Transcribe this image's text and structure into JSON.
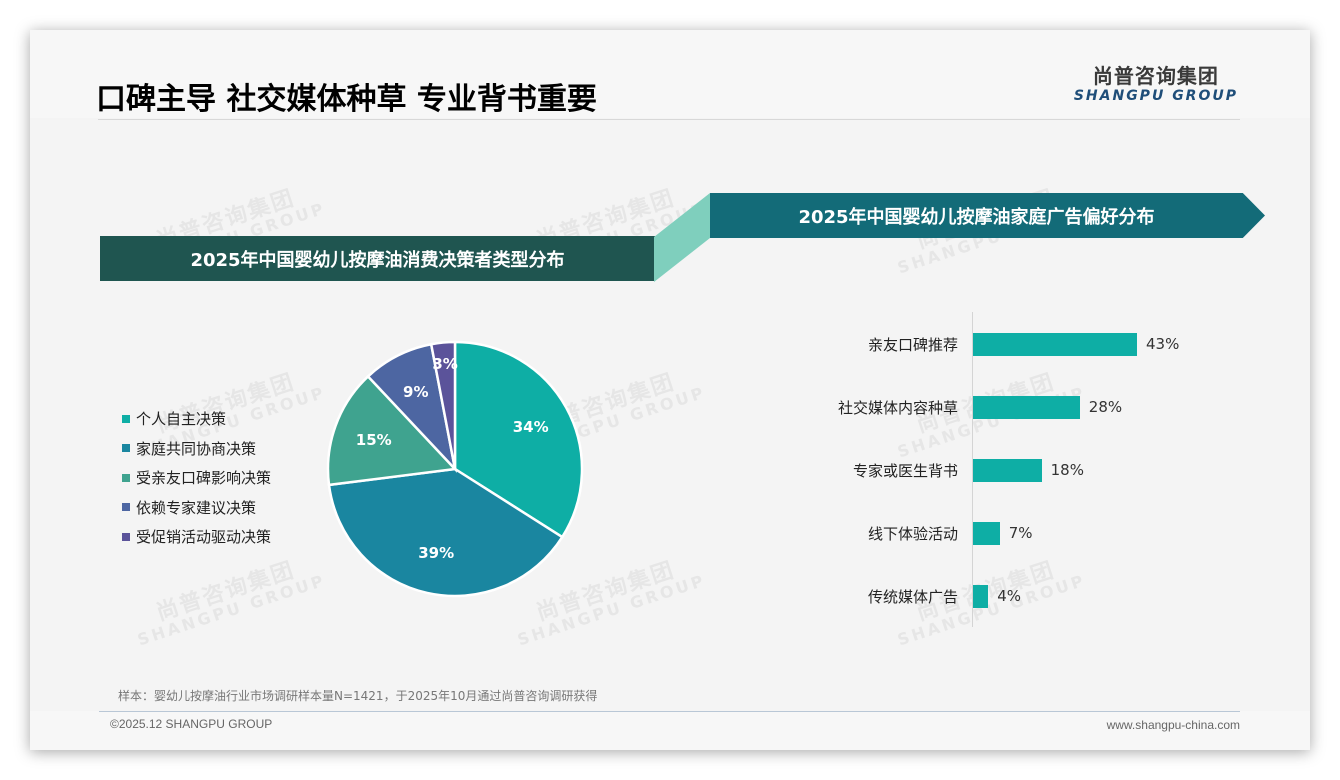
{
  "header": {
    "title": "口碑主导 社交媒体种草 专业背书重要",
    "logo_cn": "尚普咨询集团",
    "logo_en": "SHANGPU GROUP"
  },
  "watermark": {
    "cn": "尚普咨询集团",
    "en": "SHANGPU GROUP"
  },
  "colors": {
    "banner_left": "#1f5550",
    "banner_join": "#7fcfbd",
    "banner_right": "#136b78",
    "bar": "#0eaea5",
    "pie": [
      "#0eaea5",
      "#1a86a0",
      "#3fa38f",
      "#4d66a2",
      "#5b539a"
    ]
  },
  "left_panel": {
    "banner_title": "2025年中国婴幼儿按摩油消费决策者类型分布"
  },
  "right_panel": {
    "banner_title": "2025年中国婴幼儿按摩油家庭广告偏好分布"
  },
  "chart_data": [
    {
      "type": "pie",
      "title": "2025年中国婴幼儿按摩油消费决策者类型分布",
      "categories": [
        "个人自主决策",
        "家庭共同协商决策",
        "受亲友口碑影响决策",
        "依赖专家建议决策",
        "受促销活动驱动决策"
      ],
      "values": [
        34,
        39,
        15,
        9,
        3
      ],
      "labels": [
        "34%",
        "39%",
        "15%",
        "9%",
        "3%"
      ],
      "legend_position": "left",
      "start_angle": "12 o'clock, clockwise"
    },
    {
      "type": "bar",
      "orientation": "horizontal",
      "title": "2025年中国婴幼儿按摩油家庭广告偏好分布",
      "categories": [
        "亲友口碑推荐",
        "社交媒体内容种草",
        "专家或医生背书",
        "线下体验活动",
        "传统媒体广告"
      ],
      "values": [
        43,
        28,
        18,
        7,
        4
      ],
      "labels": [
        "43%",
        "28%",
        "18%",
        "7%",
        "4%"
      ],
      "xlabel": "",
      "ylabel": "",
      "grid": false
    }
  ],
  "footer": {
    "note": "样本：婴幼儿按摩油行业市场调研样本量N=1421，于2025年10月通过尚普咨询调研获得",
    "copyright": "©2025.12 SHANGPU GROUP",
    "website": "www.shangpu-china.com"
  }
}
